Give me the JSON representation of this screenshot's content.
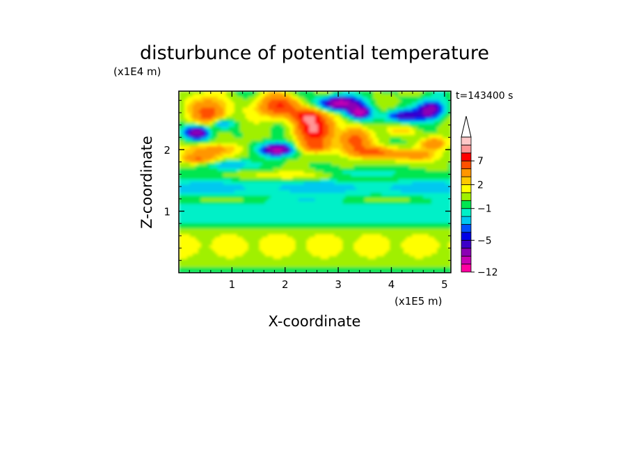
{
  "chart_data": {
    "type": "heatmap",
    "title": "disturbunce of potential temperature",
    "xlabel": "X-coordinate",
    "ylabel": "Z-coordinate",
    "x_unit": "(x1E5 m)",
    "y_unit": "(x1E4 m)",
    "time_label": "t=143400 s",
    "xlim": [
      0,
      5.12
    ],
    "ylim": [
      0,
      2.95
    ],
    "x_ticks": [
      1,
      2,
      3,
      4,
      5
    ],
    "x_tick_labels": [
      "1",
      "2",
      "3",
      "4",
      "5"
    ],
    "y_ticks": [
      1,
      2
    ],
    "y_tick_labels": [
      "1",
      "2"
    ],
    "colorbar": {
      "levels": [
        -12,
        -10,
        -8,
        -6,
        -5,
        -4,
        -3,
        -2,
        -1,
        0,
        1,
        2,
        3,
        5,
        7,
        9,
        11
      ],
      "tick_labels": [
        {
          "level": 7,
          "label": "7"
        },
        {
          "level": 2,
          "label": "2"
        },
        {
          "level": -1,
          "label": "−1"
        },
        {
          "level": -5,
          "label": "−5"
        },
        {
          "level": -12,
          "label": "−12"
        }
      ],
      "colors": [
        "#ff00a0",
        "#c800b4",
        "#8c00b4",
        "#3c00c8",
        "#0000e6",
        "#0050ff",
        "#00c8f0",
        "#00f0c8",
        "#00e650",
        "#a0f000",
        "#ffff00",
        "#ffc800",
        "#ff9600",
        "#ff5000",
        "#ff0000",
        "#ff9696",
        "#ffc8c8"
      ]
    }
  }
}
